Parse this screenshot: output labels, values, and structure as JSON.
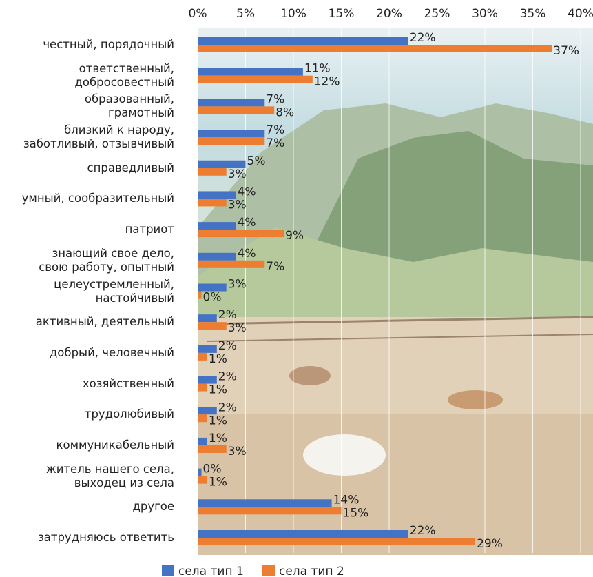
{
  "chart_data": {
    "type": "bar",
    "orientation": "horizontal",
    "categories": [
      "честный, порядочный",
      "ответственный,\nдобросовестный",
      "образованный,\nграмотный",
      "близкий к народу,\nзаботливый, отзывчивый",
      "справедливый",
      "умный, сообразительный",
      "патриот",
      "знающий свое дело,\nсвою работу, опытный",
      "целеустремленный,\nнастойчивый",
      "активный, деятельный",
      "добрый, человечный",
      "хозяйственный",
      "трудолюбивый",
      "коммуникабельный",
      "житель нашего села,\nвыходец из села",
      "другое",
      "затрудняюсь ответить"
    ],
    "series": [
      {
        "name": "села тип 1",
        "color": "#4472c4",
        "values": [
          22,
          11,
          7,
          7,
          5,
          4,
          4,
          4,
          3,
          2,
          2,
          2,
          2,
          1,
          0.4,
          14,
          22
        ],
        "value_labels": [
          "22%",
          "11%",
          "7%",
          "7%",
          "5%",
          "4%",
          "4%",
          "4%",
          "3%",
          "2%",
          "2%",
          "2%",
          "2%",
          "1%",
          "0%",
          "14%",
          "22%"
        ]
      },
      {
        "name": "села тип 2",
        "color": "#ed7d31",
        "values": [
          37,
          12,
          8,
          7,
          3,
          3,
          9,
          7,
          0.4,
          3,
          1,
          1,
          1,
          3,
          1,
          15,
          29
        ],
        "value_labels": [
          "37%",
          "12%",
          "8%",
          "7%",
          "3%",
          "3%",
          "9%",
          "7%",
          "0%",
          "3%",
          "1%",
          "1%",
          "1%",
          "3%",
          "1%",
          "15%",
          "29%"
        ]
      }
    ],
    "xlim": [
      0,
      40
    ],
    "xticks": [
      {
        "value": 0,
        "label": "0%"
      },
      {
        "value": 5,
        "label": "5%"
      },
      {
        "value": 10,
        "label": "10%"
      },
      {
        "value": 15,
        "label": "15%"
      },
      {
        "value": 20,
        "label": "20%"
      },
      {
        "value": 25,
        "label": "25%"
      },
      {
        "value": 30,
        "label": "30%"
      },
      {
        "value": 35,
        "label": "35%"
      },
      {
        "value": 40,
        "label": "40%"
      }
    ],
    "grid": true,
    "legend": "bottom"
  }
}
